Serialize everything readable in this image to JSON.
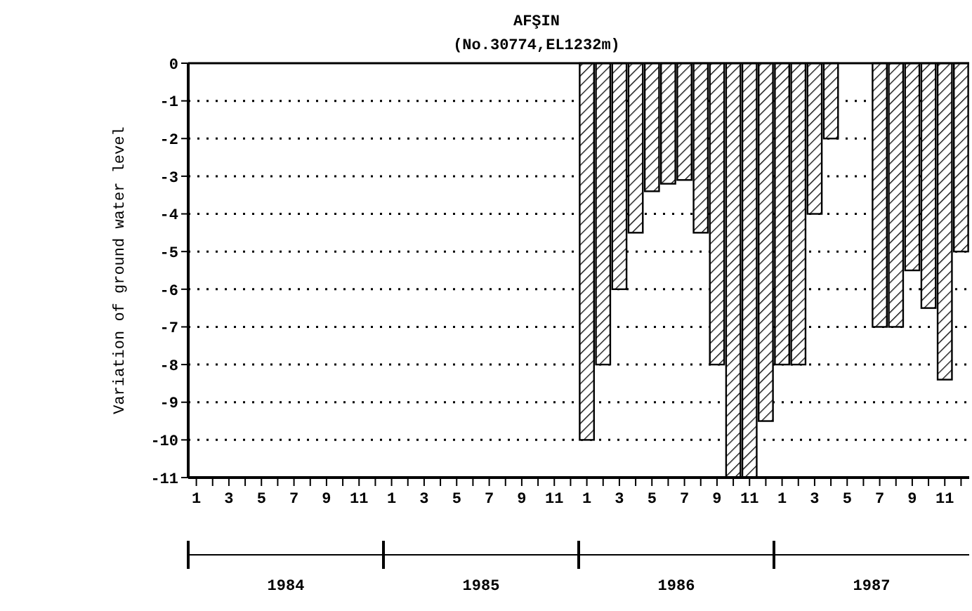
{
  "chart_data": {
    "type": "bar",
    "title": "AFŞIN",
    "subtitle": "(No.30774,EL1232m)",
    "ylabel": "Variation of ground water level",
    "categories": [
      "1",
      null,
      "3",
      null,
      "5",
      null,
      "7",
      null,
      "9",
      null,
      "11",
      null,
      "1",
      null,
      "3",
      null,
      "5",
      null,
      "7",
      null,
      "9",
      null,
      "11",
      null,
      "1",
      null,
      "3",
      null,
      "5",
      null,
      "7",
      null,
      "9",
      null,
      "11",
      null,
      "1",
      null,
      "3",
      null,
      "5",
      null,
      "7",
      null,
      "9",
      null,
      "11",
      null
    ],
    "values": [
      null,
      null,
      null,
      null,
      null,
      null,
      null,
      null,
      null,
      null,
      null,
      null,
      null,
      null,
      null,
      null,
      null,
      null,
      null,
      null,
      null,
      null,
      null,
      null,
      -10,
      -8,
      -6,
      -4.5,
      -3.4,
      -3.2,
      -3.1,
      -4.5,
      -8,
      -11,
      -11,
      -9.5,
      -8,
      -8,
      -4,
      -2,
      null,
      null,
      -7,
      -7,
      -5.5,
      -6.5,
      -8.4,
      -5
    ],
    "color": "#000000",
    "ylim": [
      -11,
      0
    ],
    "yticks": [
      0,
      -1,
      -2,
      -3,
      -4,
      -5,
      -6,
      -7,
      -8,
      -9,
      -10,
      -11
    ],
    "grid": "y",
    "annotations": [
      "1984",
      "1985",
      "1986",
      "1987"
    ]
  }
}
